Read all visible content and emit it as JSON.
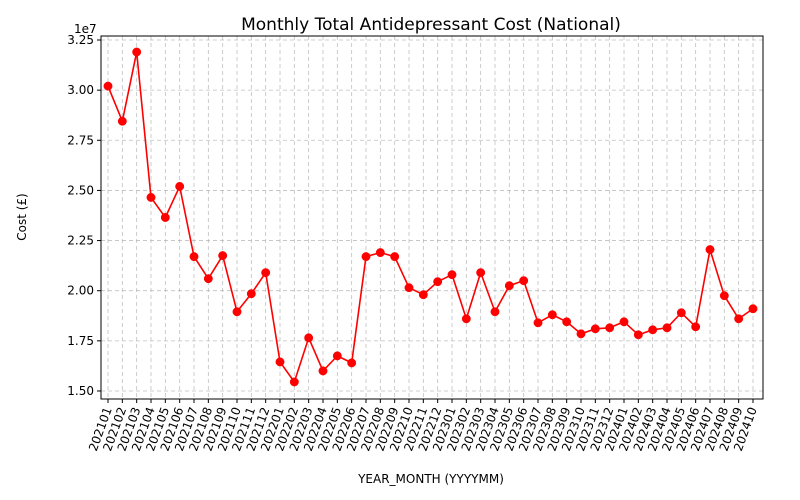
{
  "chart_data": {
    "type": "line",
    "title": "Monthly Total Antidepressant Cost (National)",
    "xlabel": "YEAR_MONTH (YYYYMM)",
    "ylabel": "Cost (£)",
    "offset_label": "1e7",
    "ylim": [
      14600000,
      32700000
    ],
    "yticks": [
      15000000,
      17500000,
      20000000,
      22500000,
      25000000,
      27500000,
      30000000,
      32500000
    ],
    "ytick_labels": [
      "1.50",
      "1.75",
      "2.00",
      "2.25",
      "2.50",
      "2.75",
      "3.00",
      "3.25"
    ],
    "grid": true,
    "color": "#ff0000",
    "marker": "circle",
    "x": [
      "202101",
      "202102",
      "202103",
      "202104",
      "202105",
      "202106",
      "202107",
      "202108",
      "202109",
      "202110",
      "202111",
      "202112",
      "202201",
      "202202",
      "202203",
      "202204",
      "202205",
      "202206",
      "202207",
      "202208",
      "202209",
      "202210",
      "202211",
      "202212",
      "202301",
      "202302",
      "202303",
      "202304",
      "202305",
      "202306",
      "202307",
      "202308",
      "202309",
      "202310",
      "202311",
      "202312",
      "202401",
      "202402",
      "202403",
      "202404",
      "202405",
      "202406",
      "202407",
      "202408",
      "202409",
      "202410"
    ],
    "values": [
      30200000,
      28450000,
      31900000,
      24650000,
      23650000,
      25200000,
      21700000,
      20600000,
      21750000,
      18950000,
      19850000,
      20900000,
      16450000,
      15450000,
      17650000,
      16000000,
      16750000,
      16400000,
      21700000,
      21900000,
      21700000,
      20150000,
      19800000,
      20450000,
      20800000,
      18600000,
      20900000,
      18950000,
      20250000,
      20500000,
      18400000,
      18800000,
      18450000,
      17850000,
      18100000,
      18150000,
      18450000,
      17800000,
      18050000,
      18150000,
      18900000,
      18200000,
      22050000,
      19750000,
      18600000,
      19100000
    ]
  }
}
